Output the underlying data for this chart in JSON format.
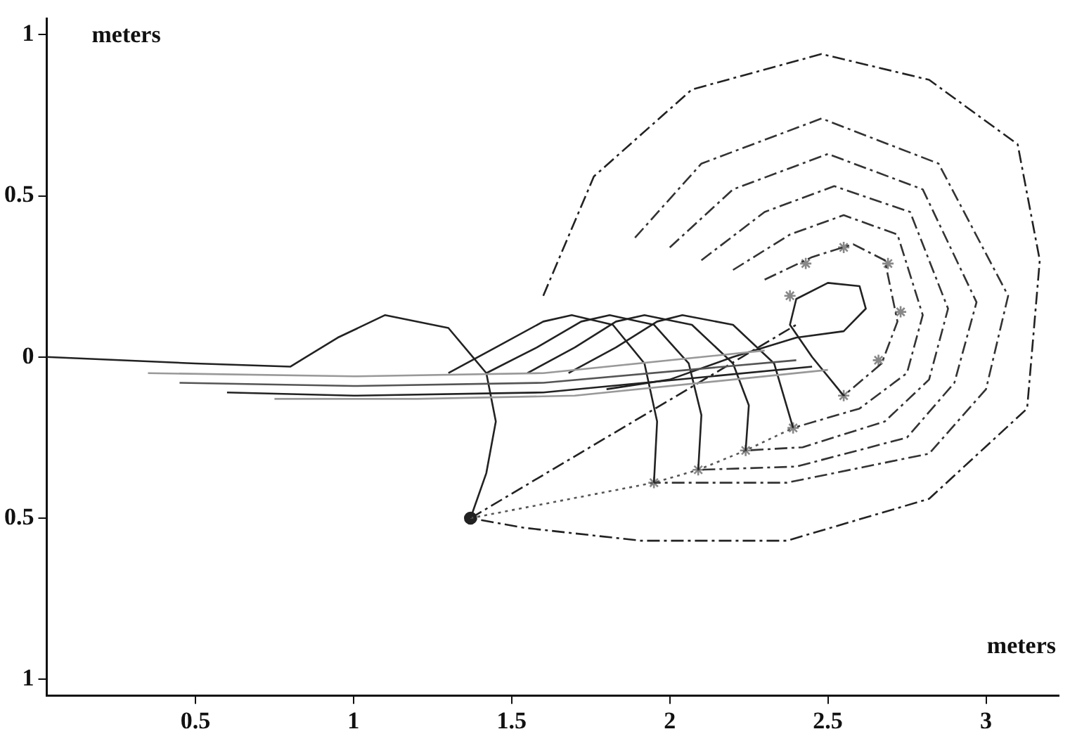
{
  "chart_data": {
    "type": "line",
    "xlabel": "meters",
    "ylabel": "meters",
    "xlim": [
      0.03,
      3.23
    ],
    "ylim": [
      -1.05,
      1.05
    ],
    "xticks": [
      0.5,
      1,
      1.5,
      2,
      2.5,
      3
    ],
    "yticks": [
      {
        "value": -1,
        "label": "1"
      },
      {
        "value": -0.5,
        "label": "0.5"
      },
      0,
      0.5,
      1
    ],
    "grid": false,
    "legend": false,
    "series": [
      {
        "color": "#999999",
        "line_style": "solid",
        "marker": "none",
        "x": [
          0.35,
          1.0,
          1.6,
          2.3
        ],
        "values": [
          -0.05,
          -0.06,
          -0.05,
          0.02
        ]
      },
      {
        "color": "#555555",
        "line_style": "solid",
        "marker": "none",
        "x": [
          0.45,
          1.0,
          1.6,
          2.4
        ],
        "values": [
          -0.08,
          -0.09,
          -0.08,
          -0.01
        ]
      },
      {
        "color": "#222222",
        "line_style": "solid",
        "marker": "none",
        "x": [
          0.6,
          1.0,
          1.6,
          2.45
        ],
        "values": [
          -0.11,
          -0.12,
          -0.11,
          -0.03
        ]
      },
      {
        "color": "#999999",
        "line_style": "solid",
        "marker": "none",
        "x": [
          0.75,
          1.2,
          1.7,
          2.5
        ],
        "values": [
          -0.13,
          -0.13,
          -0.12,
          -0.04
        ]
      },
      {
        "color": "#222222",
        "line_style": "solid",
        "marker": "none",
        "x": [
          0.03,
          0.5,
          0.8,
          0.95,
          1.1,
          1.3,
          1.42,
          1.45,
          1.42,
          1.37
        ],
        "values": [
          0,
          -0.02,
          -0.03,
          0.06,
          0.13,
          0.09,
          -0.05,
          -0.2,
          -0.36,
          -0.5
        ]
      },
      {
        "color": "#222222",
        "line_style": "solid",
        "marker": "none",
        "x": [
          1.3,
          1.45,
          1.6,
          1.69,
          1.82,
          1.92,
          1.96,
          1.95
        ],
        "values": [
          -0.05,
          0.03,
          0.11,
          0.13,
          0.1,
          -0.02,
          -0.2,
          -0.39
        ]
      },
      {
        "color": "#222222",
        "line_style": "solid",
        "marker": "none",
        "x": [
          1.42,
          1.58,
          1.72,
          1.81,
          1.95,
          2.06,
          2.1,
          2.09
        ],
        "values": [
          -0.05,
          0.03,
          0.11,
          0.13,
          0.1,
          -0.02,
          -0.18,
          -0.35
        ]
      },
      {
        "color": "#222222",
        "line_style": "solid",
        "marker": "none",
        "x": [
          1.55,
          1.7,
          1.83,
          1.92,
          2.07,
          2.2,
          2.25,
          2.24
        ],
        "values": [
          -0.05,
          0.03,
          0.11,
          0.13,
          0.1,
          -0.02,
          -0.15,
          -0.29
        ]
      },
      {
        "color": "#222222",
        "line_style": "solid",
        "marker": "none",
        "x": [
          1.68,
          1.83,
          1.96,
          2.04,
          2.2,
          2.33,
          2.39
        ],
        "values": [
          -0.05,
          0.03,
          0.11,
          0.13,
          0.1,
          -0.02,
          -0.22
        ]
      },
      {
        "color": "#222222",
        "line_style": "solid",
        "marker": "none",
        "x": [
          1.8,
          2.0,
          2.2,
          2.4,
          2.55,
          2.62,
          2.6,
          2.5,
          2.4,
          2.38,
          2.45,
          2.55
        ],
        "values": [
          -0.1,
          -0.07,
          0.0,
          0.06,
          0.08,
          0.15,
          0.22,
          0.23,
          0.18,
          0.1,
          0.0,
          -0.12
        ]
      },
      {
        "color": "#555555",
        "line_style": "dotted",
        "marker": "none",
        "x": [
          1.37,
          1.95,
          2.09,
          2.24,
          2.39
        ],
        "values": [
          -0.5,
          -0.39,
          -0.35,
          -0.29,
          -0.22
        ]
      },
      {
        "color": "#222222",
        "line_style": "dashed",
        "marker": "none",
        "x": [
          1.37,
          2.16,
          2.4
        ],
        "values": [
          -0.5,
          -0.04,
          0.1
        ]
      },
      {
        "color": "#222222",
        "line_style": "dashed",
        "marker": "none",
        "x": [
          1.6,
          1.76,
          2.07,
          2.48,
          2.82,
          3.1,
          3.17,
          3.13,
          2.82,
          2.37,
          1.91,
          1.54,
          1.37
        ],
        "values": [
          0.19,
          0.56,
          0.83,
          0.94,
          0.86,
          0.66,
          0.3,
          -0.16,
          -0.44,
          -0.57,
          -0.57,
          -0.53,
          -0.5
        ]
      },
      {
        "color": "#333333",
        "line_style": "dashed",
        "marker": "none",
        "x": [
          1.89,
          2.1,
          2.48,
          2.85,
          3.07,
          3.0,
          2.82,
          2.37,
          1.95
        ],
        "values": [
          0.37,
          0.6,
          0.74,
          0.6,
          0.19,
          -0.1,
          -0.3,
          -0.39,
          -0.39
        ]
      },
      {
        "color": "#333333",
        "line_style": "dashed",
        "marker": "none",
        "x": [
          2.0,
          2.2,
          2.5,
          2.8,
          2.97,
          2.9,
          2.75,
          2.4,
          2.09
        ],
        "values": [
          0.34,
          0.52,
          0.63,
          0.52,
          0.17,
          -0.08,
          -0.25,
          -0.34,
          -0.35
        ]
      },
      {
        "color": "#333333",
        "line_style": "dashed",
        "marker": "none",
        "x": [
          2.1,
          2.3,
          2.52,
          2.76,
          2.88,
          2.82,
          2.68,
          2.42,
          2.24
        ],
        "values": [
          0.3,
          0.45,
          0.53,
          0.45,
          0.15,
          -0.07,
          -0.2,
          -0.28,
          -0.29
        ]
      },
      {
        "color": "#333333",
        "line_style": "dashed",
        "marker": "none",
        "x": [
          2.2,
          2.38,
          2.55,
          2.72,
          2.8,
          2.75,
          2.6,
          2.39
        ],
        "values": [
          0.27,
          0.38,
          0.44,
          0.38,
          0.13,
          -0.05,
          -0.16,
          -0.22
        ]
      },
      {
        "color": "#333333",
        "line_style": "dashed",
        "marker": "none",
        "x": [
          2.3,
          2.45,
          2.58,
          2.68,
          2.72,
          2.67,
          2.55
        ],
        "values": [
          0.24,
          0.31,
          0.35,
          0.3,
          0.11,
          -0.02,
          -0.12
        ]
      },
      {
        "type": "scatter",
        "color": "#888888",
        "marker": "cross",
        "x": [
          1.95,
          2.09,
          2.24,
          2.39,
          2.55,
          2.66,
          2.73,
          2.69,
          2.55,
          2.43,
          2.38
        ],
        "values": [
          -0.39,
          -0.35,
          -0.29,
          -0.22,
          -0.12,
          -0.01,
          0.14,
          0.29,
          0.34,
          0.29,
          0.19
        ]
      },
      {
        "type": "scatter",
        "color": "#222222",
        "marker": "circle",
        "x": [
          1.37
        ],
        "values": [
          -0.5
        ]
      }
    ]
  }
}
